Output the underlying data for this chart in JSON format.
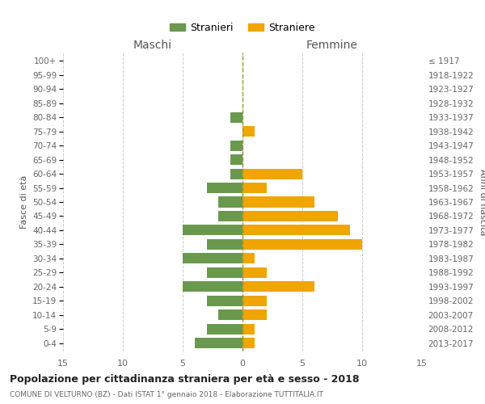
{
  "age_groups": [
    "100+",
    "95-99",
    "90-94",
    "85-89",
    "80-84",
    "75-79",
    "70-74",
    "65-69",
    "60-64",
    "55-59",
    "50-54",
    "45-49",
    "40-44",
    "35-39",
    "30-34",
    "25-29",
    "20-24",
    "15-19",
    "10-14",
    "5-9",
    "0-4"
  ],
  "birth_years": [
    "≤ 1917",
    "1918-1922",
    "1923-1927",
    "1928-1932",
    "1933-1937",
    "1938-1942",
    "1943-1947",
    "1948-1952",
    "1953-1957",
    "1958-1962",
    "1963-1967",
    "1968-1972",
    "1973-1977",
    "1978-1982",
    "1983-1987",
    "1988-1992",
    "1993-1997",
    "1998-2002",
    "2003-2007",
    "2008-2012",
    "2013-2017"
  ],
  "maschi": [
    0,
    0,
    0,
    0,
    1,
    0,
    1,
    1,
    1,
    3,
    2,
    2,
    5,
    3,
    5,
    3,
    5,
    3,
    2,
    3,
    4
  ],
  "femmine": [
    0,
    0,
    0,
    0,
    0,
    1,
    0,
    0,
    5,
    2,
    6,
    8,
    9,
    10,
    1,
    2,
    6,
    2,
    2,
    1,
    1
  ],
  "color_maschi": "#6a994e",
  "color_femmine": "#f0a500",
  "title": "Popolazione per cittadinanza straniera per età e sesso - 2018",
  "subtitle": "COMUNE DI VELTURNO (BZ) - Dati ISTAT 1° gennaio 2018 - Elaborazione TUTTITALIA.IT",
  "xlabel_left": "Maschi",
  "xlabel_right": "Femmine",
  "ylabel_left": "Fasce di età",
  "ylabel_right": "Anni di nascita",
  "xlim": 15,
  "legend_maschi": "Stranieri",
  "legend_femmine": "Straniere",
  "background_color": "#ffffff",
  "grid_color": "#cccccc"
}
